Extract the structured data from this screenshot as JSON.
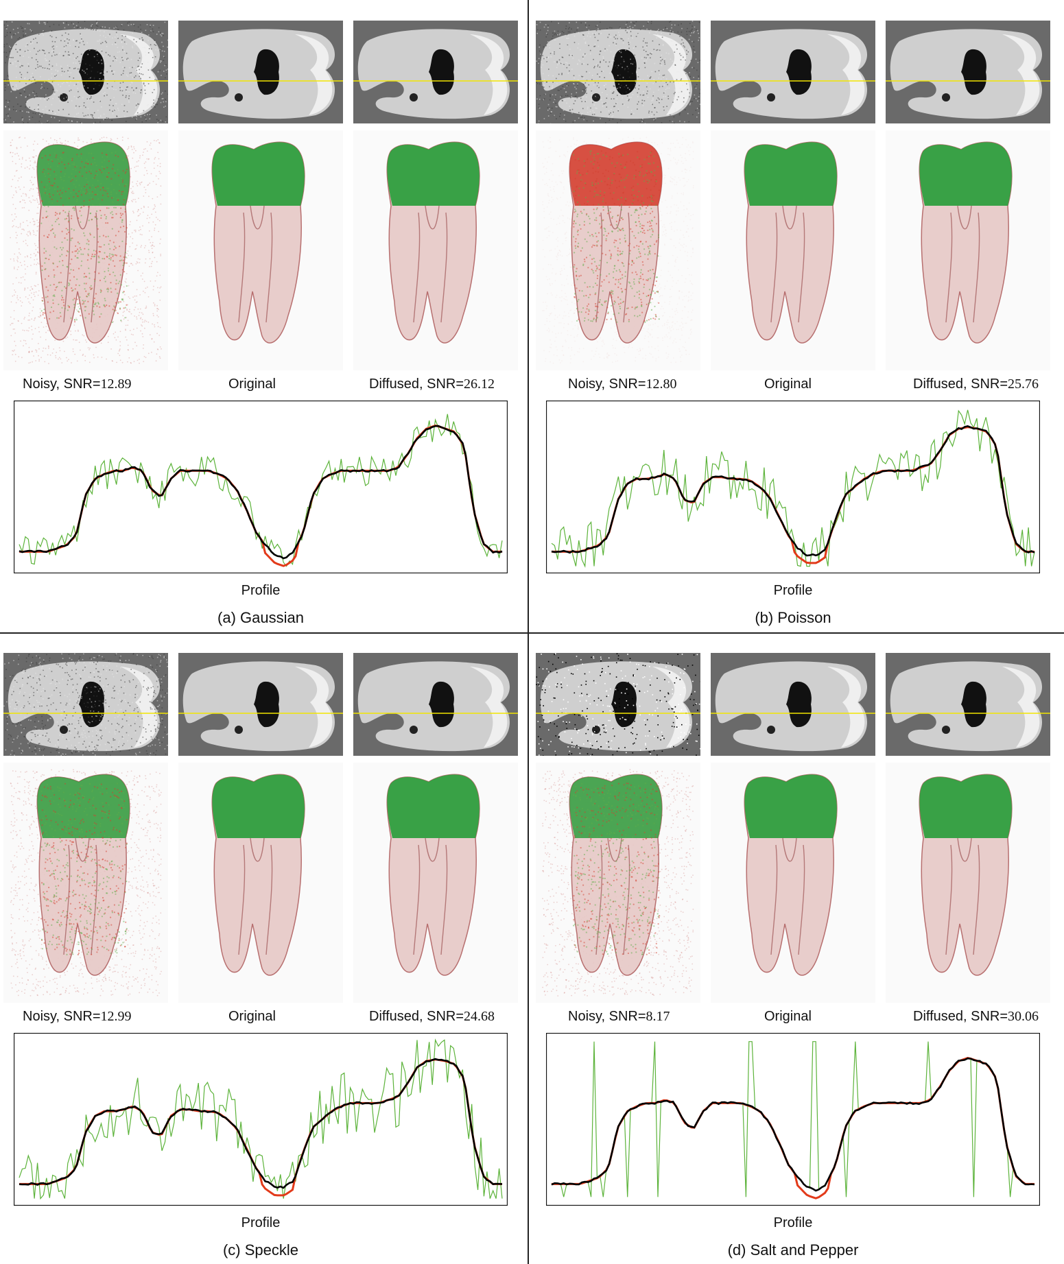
{
  "figure": {
    "panels": [
      {
        "id": "a",
        "caption": "(a) Gaussian",
        "noisy_label": "Noisy, SNR=",
        "noisy_snr": "12.89",
        "original_label": "Original",
        "diffused_label": "Diffused, SNR=",
        "diffused_snr": "26.12",
        "profile_label": "Profile",
        "noise_kind": "gaussian"
      },
      {
        "id": "b",
        "caption": "(b) Poisson",
        "noisy_label": "Noisy, SNR=",
        "noisy_snr": "12.80",
        "original_label": "Original",
        "diffused_label": "Diffused, SNR=",
        "diffused_snr": "25.76",
        "profile_label": "Profile",
        "noise_kind": "poisson"
      },
      {
        "id": "c",
        "caption": "(c) Speckle",
        "noisy_label": "Noisy, SNR=",
        "noisy_snr": "12.99",
        "original_label": "Original",
        "diffused_label": "Diffused, SNR=",
        "diffused_snr": "24.68",
        "profile_label": "Profile",
        "noise_kind": "speckle"
      },
      {
        "id": "d",
        "caption": "(d) Salt and Pepper",
        "noisy_label": "Noisy, SNR=",
        "noisy_snr": "8.17",
        "original_label": "Original",
        "diffused_label": "Diffused, SNR=",
        "diffused_snr": "30.06",
        "profile_label": "Profile",
        "noise_kind": "saltpepper"
      }
    ],
    "colors": {
      "noisy_line": "#5cb33a",
      "original_line": "#e23a1a",
      "diffused_line": "#000000",
      "crown": "#2f9e3e",
      "root": "#e7c9c7",
      "scan_line": "#f2e600",
      "slice_bg": "#6a6a6a"
    }
  },
  "chart_data": [
    {
      "type": "line",
      "panel": "a",
      "xlabel": "Profile",
      "profile": [
        0.1,
        0.1,
        0.1,
        0.1,
        0.12,
        0.14,
        0.2,
        0.45,
        0.55,
        0.58,
        0.6,
        0.6,
        0.62,
        0.6,
        0.48,
        0.44,
        0.55,
        0.6,
        0.6,
        0.6,
        0.6,
        0.58,
        0.55,
        0.48,
        0.36,
        0.22,
        0.14,
        0.08,
        0.06,
        0.1,
        0.22,
        0.45,
        0.55,
        0.58,
        0.6,
        0.6,
        0.6,
        0.6,
        0.6,
        0.6,
        0.62,
        0.7,
        0.8,
        0.86,
        0.88,
        0.86,
        0.84,
        0.75,
        0.35,
        0.15,
        0.1,
        0.1
      ],
      "noise_amp": 0.1
    },
    {
      "type": "line",
      "panel": "b",
      "xlabel": "Profile",
      "profile": [
        0.1,
        0.1,
        0.1,
        0.1,
        0.12,
        0.14,
        0.2,
        0.42,
        0.52,
        0.55,
        0.55,
        0.56,
        0.58,
        0.55,
        0.42,
        0.4,
        0.52,
        0.56,
        0.56,
        0.55,
        0.55,
        0.54,
        0.5,
        0.44,
        0.32,
        0.2,
        0.12,
        0.08,
        0.08,
        0.12,
        0.3,
        0.45,
        0.5,
        0.55,
        0.58,
        0.6,
        0.6,
        0.6,
        0.6,
        0.62,
        0.64,
        0.72,
        0.82,
        0.86,
        0.87,
        0.86,
        0.84,
        0.75,
        0.35,
        0.15,
        0.1,
        0.1
      ],
      "noise_amp": 0.16
    },
    {
      "type": "line",
      "panel": "c",
      "xlabel": "Profile",
      "profile": [
        0.1,
        0.1,
        0.1,
        0.1,
        0.12,
        0.14,
        0.2,
        0.42,
        0.52,
        0.55,
        0.55,
        0.56,
        0.58,
        0.55,
        0.42,
        0.4,
        0.52,
        0.56,
        0.56,
        0.55,
        0.55,
        0.54,
        0.5,
        0.44,
        0.32,
        0.2,
        0.12,
        0.08,
        0.08,
        0.12,
        0.3,
        0.45,
        0.5,
        0.55,
        0.58,
        0.6,
        0.6,
        0.6,
        0.6,
        0.62,
        0.64,
        0.72,
        0.82,
        0.86,
        0.87,
        0.86,
        0.84,
        0.75,
        0.35,
        0.15,
        0.1,
        0.1
      ],
      "noise_amp": 0.2
    },
    {
      "type": "line",
      "panel": "d",
      "xlabel": "Profile",
      "profile": [
        0.1,
        0.1,
        0.1,
        0.1,
        0.12,
        0.14,
        0.2,
        0.45,
        0.55,
        0.58,
        0.6,
        0.6,
        0.62,
        0.6,
        0.48,
        0.44,
        0.55,
        0.6,
        0.6,
        0.6,
        0.6,
        0.58,
        0.55,
        0.48,
        0.36,
        0.22,
        0.14,
        0.08,
        0.06,
        0.1,
        0.22,
        0.45,
        0.55,
        0.58,
        0.6,
        0.6,
        0.6,
        0.6,
        0.6,
        0.6,
        0.62,
        0.7,
        0.8,
        0.86,
        0.88,
        0.86,
        0.84,
        0.75,
        0.35,
        0.15,
        0.1,
        0.1
      ],
      "noise_amp": 0.0
    }
  ]
}
